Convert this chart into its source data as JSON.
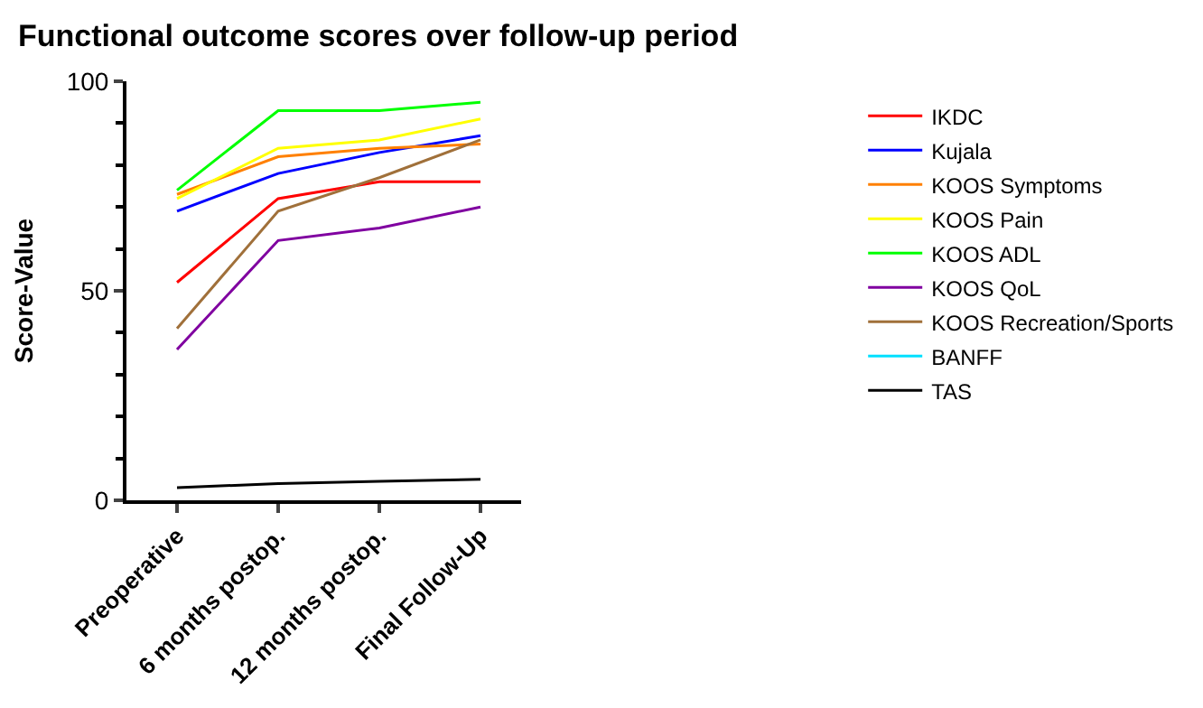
{
  "chart_data": {
    "type": "line",
    "title": "Functional outcome scores over follow-up period",
    "ylabel": "Score-Value",
    "categories": [
      "Preoperative",
      "6 months postop.",
      "12 months postop.",
      "Final Follow-Up"
    ],
    "ylim": [
      0,
      100
    ],
    "yticks": [
      0,
      50,
      100
    ],
    "legend": "right",
    "marker": "none",
    "line_style": "solid",
    "series": [
      {
        "name": "IKDC",
        "color": "#ff0000",
        "values": [
          52,
          72,
          76,
          76
        ]
      },
      {
        "name": "Kujala",
        "color": "#0000ff",
        "values": [
          69,
          78,
          83,
          87
        ]
      },
      {
        "name": "KOOS Symptoms",
        "color": "#ff8000",
        "values": [
          73,
          82,
          84,
          85
        ]
      },
      {
        "name": "KOOS Pain",
        "color": "#ffff00",
        "values": [
          72,
          84,
          86,
          91
        ]
      },
      {
        "name": "KOOS ADL",
        "color": "#00ff00",
        "values": [
          74,
          93,
          93,
          95
        ]
      },
      {
        "name": "KOOS QoL",
        "color": "#8000a0",
        "values": [
          36,
          62,
          65,
          70
        ]
      },
      {
        "name": "KOOS Recreation/Sports",
        "color": "#a0703a",
        "values": [
          41,
          69,
          77,
          86
        ]
      },
      {
        "name": "BANFF",
        "color": "#00e0ff",
        "values": [
          null,
          null,
          null,
          null
        ]
      },
      {
        "name": "TAS",
        "color": "#000000",
        "values": [
          3,
          4,
          4.5,
          5
        ]
      }
    ]
  }
}
